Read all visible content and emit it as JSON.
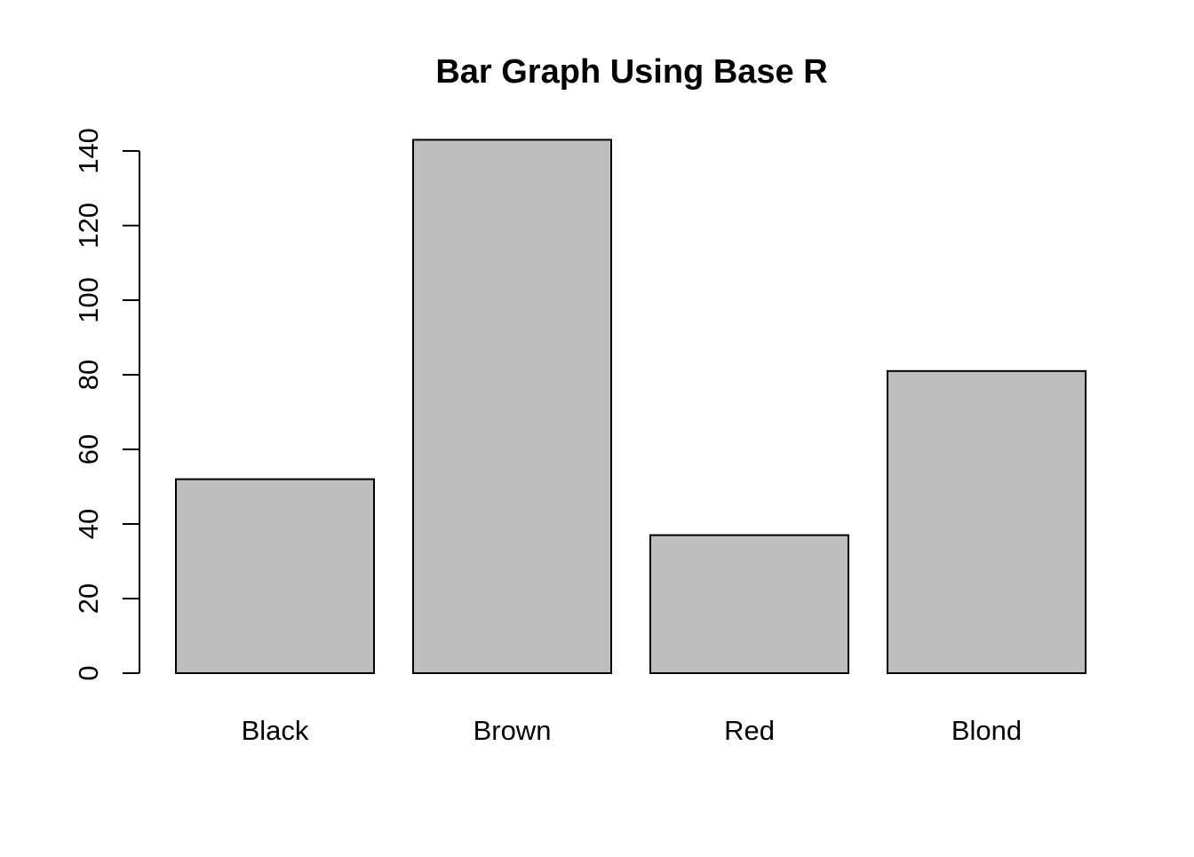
{
  "chart_data": {
    "type": "bar",
    "title": "Bar Graph Using Base R",
    "xlabel": "",
    "ylabel": "",
    "categories": [
      "Black",
      "Brown",
      "Red",
      "Blond"
    ],
    "values": [
      52,
      143,
      37,
      81
    ],
    "ylim": [
      0,
      140
    ],
    "yticks": [
      0,
      20,
      40,
      60,
      80,
      100,
      120,
      140
    ],
    "grid": false,
    "legend": "none",
    "colors": {
      "bar_fill": "#bebebe",
      "bar_stroke": "#000000",
      "text": "#000000",
      "background": "#ffffff"
    }
  }
}
